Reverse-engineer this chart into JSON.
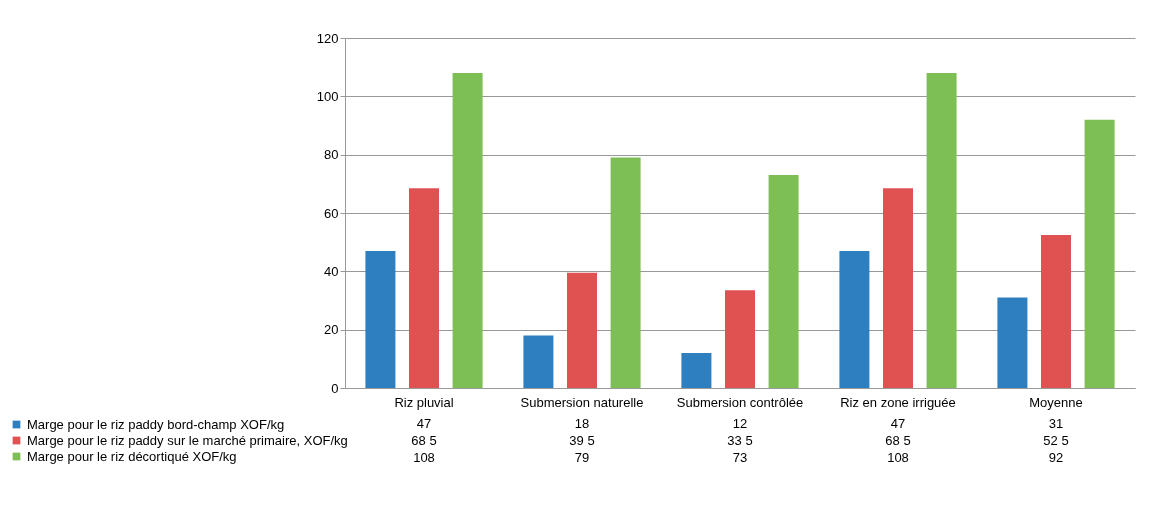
{
  "chart_data": {
    "type": "bar",
    "categories": [
      "Riz pluvial",
      "Submersion naturelle",
      "Submersion contrôlée",
      "Riz en zone irriguée",
      "Moyenne"
    ],
    "series": [
      {
        "name": "Marge pour le riz paddy bord-champ XOF/kg",
        "color": "#2e7fc0",
        "values": [
          47,
          18,
          12,
          47,
          31
        ],
        "value_labels": [
          "47",
          "18",
          "12",
          "47",
          "31"
        ]
      },
      {
        "name": "Marge pour le riz paddy sur le marché primaire, XOF/kg",
        "color": "#e05252",
        "values": [
          68.5,
          39.5,
          33.5,
          68.5,
          52.5
        ],
        "value_labels": [
          "68 5",
          "39 5",
          "33 5",
          "68 5",
          "52 5"
        ]
      },
      {
        "name": "Marge pour le riz décortiqué XOF/kg",
        "color": "#7dbf55",
        "values": [
          108,
          79,
          73,
          108,
          92
        ],
        "value_labels": [
          "108",
          "79",
          "73",
          "108",
          "92"
        ]
      }
    ],
    "ylim": [
      0,
      120
    ],
    "yticks": [
      0,
      20,
      40,
      60,
      80,
      100,
      120
    ],
    "grid": "y",
    "legend": "bottom left"
  }
}
